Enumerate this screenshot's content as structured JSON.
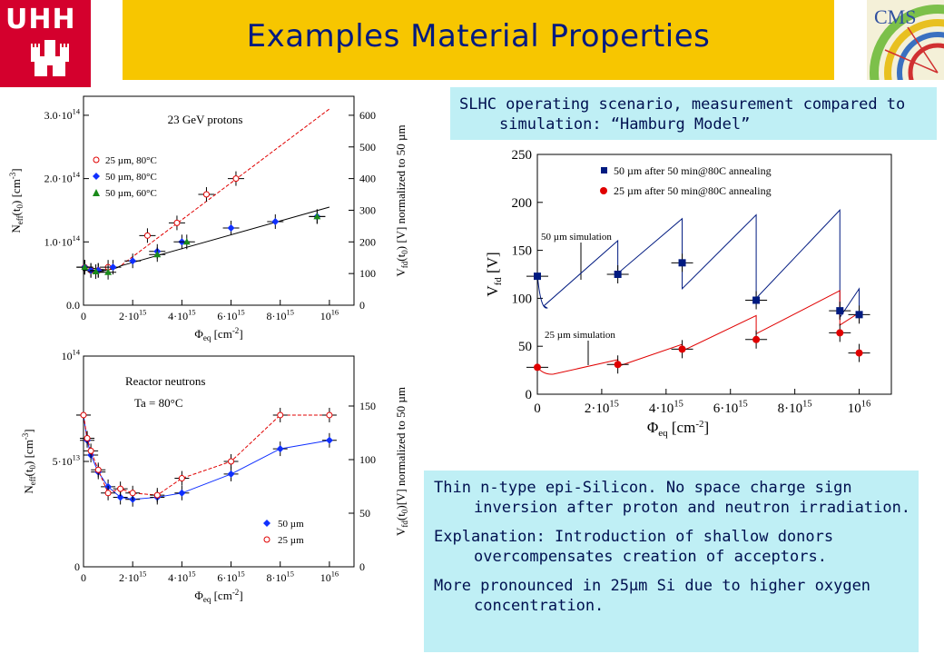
{
  "header": {
    "title": "Examples Material Properties",
    "uhh_logo_text": "UHH",
    "cms_logo_text": "CMS"
  },
  "colors": {
    "title_bar": "#f7c600",
    "title_text": "#001a80",
    "uhh": "#d4002d",
    "notes_bg": "#bfeff5",
    "navy": "#001a80",
    "red": "#e00000",
    "blue": "#1030ff",
    "green": "#1a8a1a"
  },
  "slhc_box": {
    "line1": "SLHC operating scenario, measurement compared to",
    "line2": "simulation: “Hamburg Model”"
  },
  "notes": {
    "p1_line1": "Thin n-type epi-Silicon. No space charge sign",
    "p1_line2": "inversion after proton and neutron irradiation.",
    "p2_line1": "Explanation: Introduction of shallow donors",
    "p2_line2": "overcompensates creation of acceptors.",
    "p3_line1": "More pronounced in 25µm Si due to higher oxygen",
    "p3_line2": "concentration."
  },
  "chart_data": [
    {
      "type": "scatter",
      "annotation": "23 GeV protons",
      "legend": [
        "25 µm, 80°C",
        "50 µm, 80°C",
        "50 µm, 60°C"
      ],
      "ylabel_left": "Neff(t0) [cm-3]",
      "ylabel_right": "Vfd(t0) [V] normalized to 50 µm",
      "xlabel": "Φeq [cm-2]",
      "x_ticks": [
        "0",
        "2·10^15",
        "4·10^15",
        "6·10^15",
        "8·10^15",
        "10^16"
      ],
      "y_ticks_left": [
        "0.0",
        "1.0·10^14",
        "2.0·10^14",
        "3.0·10^14"
      ],
      "y_ticks_right": [
        "0",
        "100",
        "200",
        "300",
        "400",
        "500",
        "600"
      ],
      "xlim": [
        0,
        1.1e+16
      ],
      "ylim": [
        0,
        330000000000000.0
      ],
      "series": [
        {
          "name": "25 µm, 80°C",
          "x": [
            50000000000000.0,
            300000000000000.0,
            600000000000000.0,
            1000000000000000.0,
            2600000000000000.0,
            3800000000000000.0,
            5000000000000000.0,
            6200000000000000.0
          ],
          "y": [
            60000000000000.0,
            55000000000000.0,
            55000000000000.0,
            60000000000000.0,
            110000000000000.0,
            130000000000000.0,
            175000000000000.0,
            200000000000000.0
          ]
        },
        {
          "name": "50 µm, 80°C",
          "x": [
            50000000000000.0,
            300000000000000.0,
            600000000000000.0,
            1200000000000000.0,
            2000000000000000.0,
            3000000000000000.0,
            4000000000000000.0,
            6000000000000000.0,
            7800000000000000.0,
            9500000000000000.0
          ],
          "y": [
            60000000000000.0,
            55000000000000.0,
            55000000000000.0,
            60000000000000.0,
            70000000000000.0,
            85000000000000.0,
            100000000000000.0,
            122000000000000.0,
            132000000000000.0,
            140000000000000.0
          ]
        },
        {
          "name": "50 µm, 60°C",
          "x": [
            50000000000000.0,
            500000000000000.0,
            1000000000000000.0,
            3000000000000000.0,
            4200000000000000.0,
            9500000000000000.0
          ],
          "y": [
            60000000000000.0,
            53000000000000.0,
            52000000000000.0,
            80000000000000.0,
            100000000000000.0,
            140000000000000.0
          ]
        }
      ]
    },
    {
      "type": "scatter",
      "annotation": "Reactor neutrons",
      "annotation2": "Ta = 80°C",
      "legend": [
        "50 µm",
        "25 µm"
      ],
      "ylabel_left": "Neff(t0) [cm-3]",
      "ylabel_right": "Vfd(t0)[V] normalized to 50 µm",
      "xlabel": "Φeq [cm-2]",
      "x_ticks": [
        "0",
        "2·10^15",
        "4·10^15",
        "6·10^15",
        "8·10^15",
        "10^16"
      ],
      "y_ticks_left": [
        "0",
        "5·10^13",
        "10^14"
      ],
      "y_ticks_right": [
        "0",
        "50",
        "100",
        "150"
      ],
      "xlim": [
        0,
        1.1e+16
      ],
      "ylim": [
        0,
        100000000000000.0
      ],
      "series": [
        {
          "name": "50 µm",
          "x": [
            0.0,
            150000000000000.0,
            300000000000000.0,
            600000000000000.0,
            1000000000000000.0,
            1500000000000000.0,
            2000000000000000.0,
            3000000000000000.0,
            4000000000000000.0,
            6000000000000000.0,
            8000000000000000.0,
            1e+16
          ],
          "y": [
            72000000000000.0,
            60000000000000.0,
            53000000000000.0,
            45000000000000.0,
            38000000000000.0,
            33000000000000.0,
            32000000000000.0,
            33000000000000.0,
            35000000000000.0,
            44000000000000.0,
            56000000000000.0,
            60000000000000.0
          ]
        },
        {
          "name": "25 µm",
          "x": [
            0.0,
            150000000000000.0,
            300000000000000.0,
            600000000000000.0,
            1000000000000000.0,
            1500000000000000.0,
            2000000000000000.0,
            3000000000000000.0,
            4000000000000000.0,
            6000000000000000.0,
            8000000000000000.0,
            1e+16
          ],
          "y": [
            72000000000000.0,
            61000000000000.0,
            55000000000000.0,
            46000000000000.0,
            35000000000000.0,
            37000000000000.0,
            35000000000000.0,
            34000000000000.0,
            42000000000000.0,
            50000000000000.0,
            72000000000000.0,
            72000000000000.0
          ]
        }
      ]
    },
    {
      "type": "line",
      "legend": [
        "50 µm after 50 min@80C annealing",
        "25 µm after 50 min@80C annealing"
      ],
      "annotations": [
        "50 µm simulation",
        "25 µm simulation"
      ],
      "ylabel": "Vfd [V]",
      "xlabel": "Φeq [cm-2]",
      "x_ticks": [
        "0",
        "2·10^15",
        "4·10^15",
        "6·10^15",
        "8·10^15",
        "10^16"
      ],
      "y_ticks": [
        "0",
        "50",
        "100",
        "150",
        "200",
        "250"
      ],
      "xlim": [
        0,
        1.1e+16
      ],
      "ylim": [
        0,
        250
      ],
      "series": [
        {
          "name": "50 µm after 50 min@80C annealing",
          "x": [
            0,
            2500000000000000.0,
            4500000000000000.0,
            6800000000000000.0,
            9400000000000000.0,
            1e+16
          ],
          "y": [
            123,
            125,
            137,
            98,
            87,
            83
          ]
        },
        {
          "name": "25 µm after 50 min@80C annealing",
          "x": [
            0,
            2500000000000000.0,
            4500000000000000.0,
            6800000000000000.0,
            9400000000000000.0,
            1e+16
          ],
          "y": [
            28,
            31,
            47,
            57,
            64,
            43
          ]
        }
      ]
    }
  ]
}
